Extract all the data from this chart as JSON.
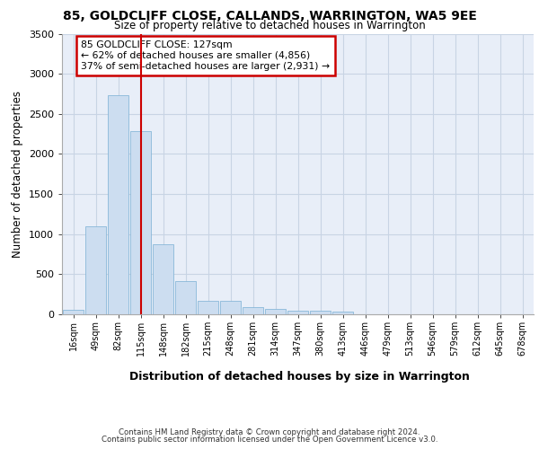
{
  "title": "85, GOLDCLIFF CLOSE, CALLANDS, WARRINGTON, WA5 9EE",
  "subtitle": "Size of property relative to detached houses in Warrington",
  "xlabel": "Distribution of detached houses by size in Warrington",
  "ylabel": "Number of detached properties",
  "categories": [
    "16sqm",
    "49sqm",
    "82sqm",
    "115sqm",
    "148sqm",
    "182sqm",
    "215sqm",
    "248sqm",
    "281sqm",
    "314sqm",
    "347sqm",
    "380sqm",
    "413sqm",
    "446sqm",
    "479sqm",
    "513sqm",
    "546sqm",
    "579sqm",
    "612sqm",
    "645sqm",
    "678sqm"
  ],
  "values": [
    55,
    1100,
    2730,
    2290,
    870,
    420,
    170,
    165,
    90,
    65,
    48,
    40,
    30,
    5,
    5,
    5,
    3,
    3,
    2,
    2,
    2
  ],
  "bar_color": "#ccddf0",
  "bar_edge_color": "#7aafd4",
  "annotation_text": "85 GOLDCLIFF CLOSE: 127sqm\n← 62% of detached houses are smaller (4,856)\n37% of semi-detached houses are larger (2,931) →",
  "annotation_box_color": "#ffffff",
  "annotation_box_edge_color": "#cc0000",
  "red_line_color": "#cc0000",
  "grid_color": "#c8d4e4",
  "background_color": "#e8eef8",
  "ylim": [
    0,
    3500
  ],
  "yticks": [
    0,
    500,
    1000,
    1500,
    2000,
    2500,
    3000,
    3500
  ],
  "property_line_index": 3.0,
  "footer1": "Contains HM Land Registry data © Crown copyright and database right 2024.",
  "footer2": "Contains public sector information licensed under the Open Government Licence v3.0."
}
